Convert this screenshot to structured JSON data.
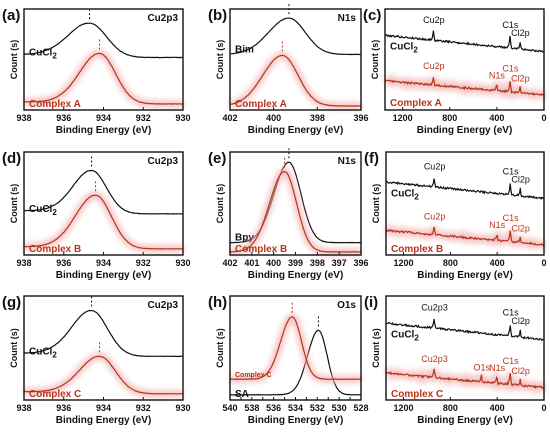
{
  "colors": {
    "black": "#111111",
    "red": "#b8341d",
    "axis": "#111111",
    "pinkHalo": "#f1b3b3"
  },
  "chart_data": [
    {
      "panel": "a",
      "type": "line",
      "title": "Cu2p3",
      "xlabel": "Binding Energy (eV)",
      "ylabel": "Count (s)",
      "xlim": [
        938,
        930
      ],
      "xticks": [
        938,
        936,
        934,
        932,
        930
      ],
      "series": [
        {
          "name": "CuCl2",
          "color": "#111111",
          "label_pos": "top-left",
          "baseline": 0.52,
          "sigma": 0.85,
          "height": 0.34,
          "tail": 0.03,
          "tail_dir": "left",
          "noise": 0.004,
          "peaks": [
            {
              "x": 934.7,
              "h": 1
            }
          ],
          "dash_x": 934.7
        },
        {
          "name": "Complex A",
          "color": "#b8341d",
          "label_pos": "bottom-left",
          "baseline": 0.06,
          "sigma": 0.8,
          "height": 0.5,
          "tail": 0.02,
          "tail_dir": "left",
          "noise": 0.004,
          "peaks": [
            {
              "x": 934.2,
              "h": 1
            }
          ],
          "dash_x": 934.2,
          "halo": true
        }
      ]
    },
    {
      "panel": "b",
      "type": "line",
      "title": "N1s",
      "xlabel": "Binding Energy (eV)",
      "ylabel": "Count (s)",
      "xlim": [
        402,
        396
      ],
      "xticks": [
        402,
        400,
        398,
        396
      ],
      "series": [
        {
          "name": "Bim",
          "color": "#111111",
          "label_pos": "top-left",
          "baseline": 0.55,
          "sigma": 0.75,
          "height": 0.36,
          "tail": 0.0,
          "tail_dir": "left",
          "noise": 0.003,
          "peaks": [
            {
              "x": 399.3,
              "h": 1
            }
          ],
          "dash_x": 399.3
        },
        {
          "name": "Complex A",
          "color": "#b8341d",
          "label_pos": "bottom-left",
          "baseline": 0.04,
          "sigma": 0.72,
          "height": 0.5,
          "tail": 0.0,
          "tail_dir": "left",
          "noise": 0.003,
          "peaks": [
            {
              "x": 399.6,
              "h": 1
            }
          ],
          "dash_x": 399.6,
          "halo": true
        }
      ]
    },
    {
      "panel": "c",
      "type": "line",
      "title": "",
      "xlabel": "Binding Energy (eV)",
      "ylabel": "Count (s)",
      "xlim": [
        1350,
        0
      ],
      "xticks": [
        1200,
        800,
        400,
        0
      ],
      "survey": true,
      "series": [
        {
          "name": "CuCl2",
          "color": "#111111",
          "label_pos": "top-left",
          "baseline": 0.58,
          "slope": 0.16,
          "noise": 0.006,
          "peaks": [
            {
              "x": 935,
              "h": 0.14,
              "label": "Cu2p"
            },
            {
              "x": 285,
              "h": 0.17,
              "label": "C1s"
            },
            {
              "x": 200,
              "h": 0.1,
              "label": "Cl2p"
            }
          ]
        },
        {
          "name": "Complex A",
          "color": "#b8341d",
          "label_pos": "bottom-left",
          "baseline": 0.15,
          "slope": 0.14,
          "noise": 0.006,
          "peaks": [
            {
              "x": 935,
              "h": 0.13,
              "label": "Cu2p"
            },
            {
              "x": 400,
              "h": 0.09,
              "label": "N1s"
            },
            {
              "x": 285,
              "h": 0.17,
              "label": "C1s"
            },
            {
              "x": 200,
              "h": 0.08,
              "label": "Cl2p"
            }
          ],
          "halo": true
        }
      ]
    },
    {
      "panel": "d",
      "type": "line",
      "title": "Cu2p3",
      "xlabel": "Binding Energy (eV)",
      "ylabel": "Count (s)",
      "xlim": [
        938,
        930
      ],
      "xticks": [
        938,
        936,
        934,
        932,
        930
      ],
      "series": [
        {
          "name": "CuCl2",
          "color": "#111111",
          "label_pos": "top-left",
          "baseline": 0.4,
          "sigma": 0.75,
          "height": 0.42,
          "tail": 0.03,
          "tail_dir": "left",
          "noise": 0.004,
          "peaks": [
            {
              "x": 934.6,
              "h": 1
            }
          ],
          "dash_x": 934.6
        },
        {
          "name": "Complex B",
          "color": "#b8341d",
          "label_pos": "bottom-left",
          "baseline": 0.06,
          "sigma": 0.8,
          "height": 0.52,
          "tail": 0.02,
          "tail_dir": "left",
          "noise": 0.004,
          "peaks": [
            {
              "x": 934.4,
              "h": 1
            }
          ],
          "dash_x": 934.4,
          "halo": true
        }
      ]
    },
    {
      "panel": "e",
      "type": "line",
      "title": "N1s",
      "xlabel": "Binding Energy (eV)",
      "ylabel": "Count (s)",
      "xlim": [
        402,
        396
      ],
      "xticks": [
        402,
        401,
        400,
        399,
        398,
        397,
        396
      ],
      "series": [
        {
          "name": "Bpy",
          "color": "#111111",
          "label_pos": "top-left",
          "baseline": 0.12,
          "sigma": 0.55,
          "height": 0.78,
          "tail": 0.0,
          "tail_dir": "left",
          "noise": 0.003,
          "peaks": [
            {
              "x": 399.3,
              "h": 1
            }
          ],
          "dash_x": 399.3
        },
        {
          "name": "Complex B",
          "color": "#b8341d",
          "label_pos": "bottom-left",
          "baseline": 0.03,
          "sigma": 0.55,
          "height": 0.78,
          "tail": 0.0,
          "tail_dir": "left",
          "noise": 0.003,
          "peaks": [
            {
              "x": 399.5,
              "h": 1
            }
          ],
          "dash_x": 399.5,
          "halo": true
        }
      ]
    },
    {
      "panel": "f",
      "type": "line",
      "title": "",
      "xlabel": "Binding Energy (eV)",
      "ylabel": "Count (s)",
      "xlim": [
        1350,
        0
      ],
      "xticks": [
        1200,
        800,
        400,
        0
      ],
      "survey": true,
      "series": [
        {
          "name": "CuCl2",
          "color": "#111111",
          "label_pos": "top-left",
          "baseline": 0.55,
          "slope": 0.16,
          "noise": 0.006,
          "peaks": [
            {
              "x": 935,
              "h": 0.14,
              "label": "Cu2p"
            },
            {
              "x": 285,
              "h": 0.17,
              "label": "C1s"
            },
            {
              "x": 200,
              "h": 0.1,
              "label": "Cl2p"
            }
          ]
        },
        {
          "name": "Complex B",
          "color": "#b8341d",
          "label_pos": "bottom-left",
          "baseline": 0.1,
          "slope": 0.14,
          "noise": 0.006,
          "peaks": [
            {
              "x": 935,
              "h": 0.12,
              "label": "Cu2p"
            },
            {
              "x": 400,
              "h": 0.09,
              "label": "N1s"
            },
            {
              "x": 285,
              "h": 0.17,
              "label": "C1s"
            },
            {
              "x": 200,
              "h": 0.08,
              "label": "Cl2p"
            }
          ],
          "halo": true
        }
      ]
    },
    {
      "panel": "g",
      "type": "line",
      "title": "Cu2p3",
      "xlabel": "Binding Energy (eV)",
      "ylabel": "Count (s)",
      "xlim": [
        938,
        930
      ],
      "xticks": [
        938,
        936,
        934,
        932,
        930
      ],
      "series": [
        {
          "name": "CuCl2",
          "color": "#111111",
          "label_pos": "mid-left",
          "baseline": 0.42,
          "sigma": 0.8,
          "height": 0.44,
          "tail": 0.03,
          "tail_dir": "left",
          "noise": 0.004,
          "peaks": [
            {
              "x": 934.6,
              "h": 1
            }
          ],
          "dash_x": 934.6
        },
        {
          "name": "Complex C",
          "color": "#b8341d",
          "label_pos": "bottom-left",
          "baseline": 0.06,
          "sigma": 0.8,
          "height": 0.36,
          "tail": 0.02,
          "tail_dir": "left",
          "noise": 0.004,
          "peaks": [
            {
              "x": 934.2,
              "h": 1
            }
          ],
          "dash_x": 934.2,
          "halo": true
        }
      ]
    },
    {
      "panel": "h",
      "type": "line",
      "title": "O1s",
      "xlabel": "Binding Energy (eV)",
      "ylabel": "Count (s)",
      "xlim": [
        540,
        528
      ],
      "xticks": [
        540,
        539,
        538,
        537,
        536,
        535,
        534,
        533,
        532,
        531,
        530,
        529,
        528
      ],
      "xticklabels": [
        "540",
        "",
        "538",
        "",
        "536",
        "",
        "534",
        "",
        "532",
        "",
        "530",
        "",
        "528"
      ],
      "series": [
        {
          "name": "SA",
          "color": "#111111",
          "label_pos": "bottom-left",
          "baseline": 0.05,
          "sigma": 0.8,
          "height": 0.62,
          "tail": 0.0,
          "tail_dir": "left",
          "noise": 0.004,
          "peaks": [
            {
              "x": 531.9,
              "h": 1
            }
          ],
          "dash_x": 531.9
        },
        {
          "name": "Complex C",
          "color": "#b8341d",
          "label_pos": "mid-left",
          "baseline": 0.2,
          "sigma": 0.85,
          "height": 0.6,
          "tail": 0.0,
          "tail_dir": "left",
          "noise": 0.004,
          "peaks": [
            {
              "x": 534.3,
              "h": 1
            }
          ],
          "dash_x": 534.3,
          "halo": true
        }
      ]
    },
    {
      "panel": "i",
      "type": "line",
      "title": "",
      "xlabel": "Binding Energy (eV)",
      "ylabel": "Count (s)",
      "xlim": [
        1350,
        0
      ],
      "xticks": [
        1200,
        800,
        400,
        0
      ],
      "survey": true,
      "series": [
        {
          "name": "CuCl2",
          "color": "#111111",
          "label_pos": "top-left",
          "baseline": 0.58,
          "slope": 0.16,
          "noise": 0.006,
          "peaks": [
            {
              "x": 935,
              "h": 0.14,
              "label": "Cu2p3"
            },
            {
              "x": 285,
              "h": 0.17,
              "label": "C1s"
            },
            {
              "x": 200,
              "h": 0.1,
              "label": "Cl2p"
            }
          ]
        },
        {
          "name": "Complex C",
          "color": "#b8341d",
          "label_pos": "bottom-left",
          "baseline": 0.12,
          "slope": 0.14,
          "noise": 0.006,
          "peaks": [
            {
              "x": 935,
              "h": 0.12,
              "label": "Cu2p3"
            },
            {
              "x": 532,
              "h": 0.08,
              "label": "O1s"
            },
            {
              "x": 400,
              "h": 0.09,
              "label": "N1s"
            },
            {
              "x": 285,
              "h": 0.17,
              "label": "C1s"
            },
            {
              "x": 200,
              "h": 0.08,
              "label": "Cl2p"
            }
          ],
          "halo": true
        }
      ]
    }
  ]
}
